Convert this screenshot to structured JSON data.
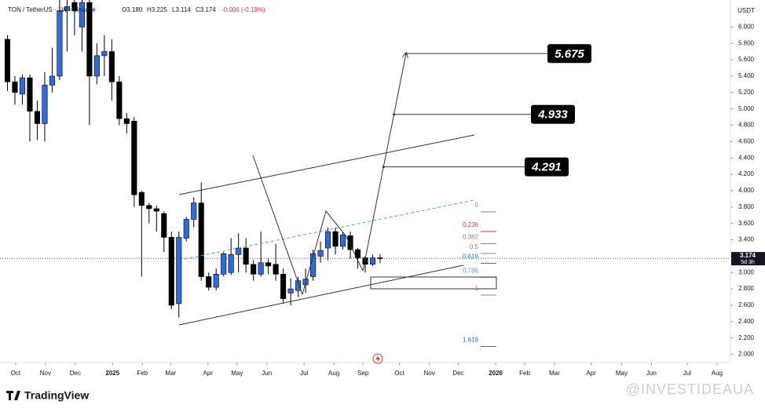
{
  "chart_data": {
    "type": "candlestick",
    "symbol": "TON / TetherUS · 1W · Binance",
    "header_open": "O3.180",
    "header_high": "H3.225",
    "header_low": "L3.114",
    "header_close": "C3.174",
    "header_change": "-0.006 (-0.19%)",
    "currency": "USDT",
    "last_price": 3.174,
    "countdown": "5d 3h",
    "up_color": "#2d6ae3",
    "down_color": "#000000",
    "x": [
      1,
      2,
      3,
      4,
      5,
      6,
      7,
      8,
      9,
      10,
      11,
      12,
      13,
      14,
      15,
      16,
      17,
      18,
      19,
      20,
      21,
      22,
      23,
      24,
      25,
      26,
      27,
      28,
      29,
      30,
      31,
      32,
      33,
      34,
      35,
      36,
      37,
      38,
      39,
      40,
      41,
      42,
      43,
      44,
      45,
      46,
      47,
      48,
      49,
      50,
      51
    ],
    "open": [
      5.85,
      5.33,
      5.18,
      5.38,
      4.97,
      4.82,
      5.29,
      5.4,
      6.2,
      6.3,
      6.0,
      6.3,
      5.4,
      5.65,
      5.7,
      5.33,
      4.88,
      4.85,
      3.98,
      3.82,
      3.78,
      3.72,
      3.43,
      2.62,
      3.42,
      3.65,
      3.85,
      2.95,
      2.82,
      2.98,
      3.0,
      3.22,
      3.3,
      3.1,
      2.98,
      3.12,
      3.1,
      2.98,
      2.75,
      2.78,
      2.85,
      2.95,
      3.2,
      3.3,
      3.5,
      3.32,
      3.45,
      3.28,
      3.18,
      3.1,
      3.18
    ],
    "high": [
      5.9,
      5.4,
      5.42,
      5.42,
      5.1,
      5.45,
      5.75,
      6.4,
      6.4,
      6.4,
      6.4,
      6.4,
      5.8,
      5.9,
      5.85,
      5.4,
      4.95,
      4.9,
      4.0,
      3.85,
      3.82,
      3.75,
      3.5,
      3.5,
      3.68,
      3.92,
      4.1,
      3.0,
      3.05,
      3.25,
      3.42,
      3.48,
      3.42,
      3.15,
      3.5,
      3.17,
      3.35,
      3.05,
      2.93,
      2.95,
      3.05,
      3.28,
      3.38,
      3.55,
      3.55,
      3.5,
      3.5,
      3.3,
      3.2,
      3.22,
      3.225
    ],
    "low": [
      5.22,
      5.05,
      5.05,
      4.6,
      4.62,
      4.6,
      5.2,
      5.35,
      5.7,
      5.9,
      5.7,
      4.8,
      5.3,
      5.4,
      5.1,
      4.8,
      4.7,
      3.8,
      2.95,
      3.6,
      3.5,
      3.25,
      2.55,
      2.45,
      3.38,
      3.55,
      2.9,
      2.78,
      2.78,
      2.95,
      2.97,
      3.0,
      3.0,
      2.9,
      2.95,
      2.98,
      2.9,
      2.62,
      2.6,
      2.7,
      2.75,
      2.9,
      3.12,
      3.15,
      3.22,
      3.28,
      3.17,
      3.05,
      3.0,
      3.08,
      3.114
    ],
    "close": [
      5.33,
      5.2,
      5.38,
      4.97,
      4.82,
      5.29,
      5.4,
      6.2,
      6.25,
      6.2,
      6.3,
      5.4,
      5.65,
      5.7,
      5.33,
      4.88,
      4.82,
      3.95,
      3.82,
      3.78,
      3.75,
      3.43,
      2.6,
      3.43,
      3.65,
      3.85,
      2.95,
      2.82,
      2.98,
      3.23,
      3.22,
      3.3,
      3.1,
      2.98,
      3.12,
      3.08,
      2.98,
      2.68,
      2.8,
      2.9,
      2.92,
      3.23,
      3.27,
      3.5,
      3.32,
      3.46,
      3.28,
      3.18,
      3.1,
      3.18,
      3.174
    ],
    "xlim": [
      0,
      98
    ],
    "xticks": [
      {
        "value": 2.1,
        "label": "Oct"
      },
      {
        "value": 6.1,
        "label": "Nov"
      },
      {
        "value": 10.1,
        "label": "Dec"
      },
      {
        "value": 15.1,
        "label": "2025"
      },
      {
        "value": 19.1,
        "label": "Feb"
      },
      {
        "value": 22.9,
        "label": "Mar"
      },
      {
        "value": 27.9,
        "label": "Apr"
      },
      {
        "value": 31.8,
        "label": "May"
      },
      {
        "value": 35.8,
        "label": "Jun"
      },
      {
        "value": 40.8,
        "label": "Jul"
      },
      {
        "value": 44.8,
        "label": "Aug"
      },
      {
        "value": 48.7,
        "label": "Sep"
      },
      {
        "value": 53.6,
        "label": "Oct"
      },
      {
        "value": 57.6,
        "label": "Nov"
      },
      {
        "value": 61.5,
        "label": "Dec"
      },
      {
        "value": 66.5,
        "label": "2026"
      },
      {
        "value": 70.4,
        "label": "Feb"
      },
      {
        "value": 74.4,
        "label": "Mar"
      },
      {
        "value": 79.3,
        "label": "Apr"
      },
      {
        "value": 83.4,
        "label": "May"
      },
      {
        "value": 87.4,
        "label": "Jun"
      },
      {
        "value": 92.2,
        "label": "Jul"
      },
      {
        "value": 96.2,
        "label": "Aug"
      }
    ],
    "ylim": [
      1.9,
      6.33
    ],
    "yticks": [
      {
        "value": 6.0,
        "label": "6.000"
      },
      {
        "value": 5.8,
        "label": "5.800"
      },
      {
        "value": 5.6,
        "label": "5.600"
      },
      {
        "value": 5.4,
        "label": "5.400"
      },
      {
        "value": 5.2,
        "label": "5.200"
      },
      {
        "value": 5.0,
        "label": "5.000"
      },
      {
        "value": 4.8,
        "label": "4.800"
      },
      {
        "value": 4.6,
        "label": "4.600"
      },
      {
        "value": 4.4,
        "label": "4.400"
      },
      {
        "value": 4.2,
        "label": "4.200"
      },
      {
        "value": 4.0,
        "label": "4.000"
      },
      {
        "value": 3.8,
        "label": "3.800"
      },
      {
        "value": 3.6,
        "label": "3.600"
      },
      {
        "value": 3.4,
        "label": "3.400"
      },
      {
        "value": 3.2,
        "label": "3.200"
      },
      {
        "value": 3.0,
        "label": "3.000"
      },
      {
        "value": 2.8,
        "label": "2.800"
      },
      {
        "value": 2.6,
        "label": "2.600"
      },
      {
        "value": 2.4,
        "label": "2.400"
      },
      {
        "value": 2.2,
        "label": "2.200"
      },
      {
        "value": 2.0,
        "label": "2.000"
      }
    ],
    "targets": [
      5.675,
      4.933,
      4.291
    ],
    "fib_levels": [
      0,
      0.236,
      0.382,
      0.5,
      0.618,
      0.786,
      1,
      1.618
    ],
    "fib_colors": [
      "#888888",
      "#e53935",
      "#888888",
      "#888888",
      "#1e88b4",
      "#4aa3df",
      "#888888",
      "#2d6ae3"
    ]
  },
  "footer": {
    "brand": "TradingView",
    "watermark": "@INVESTIDEAUA"
  }
}
